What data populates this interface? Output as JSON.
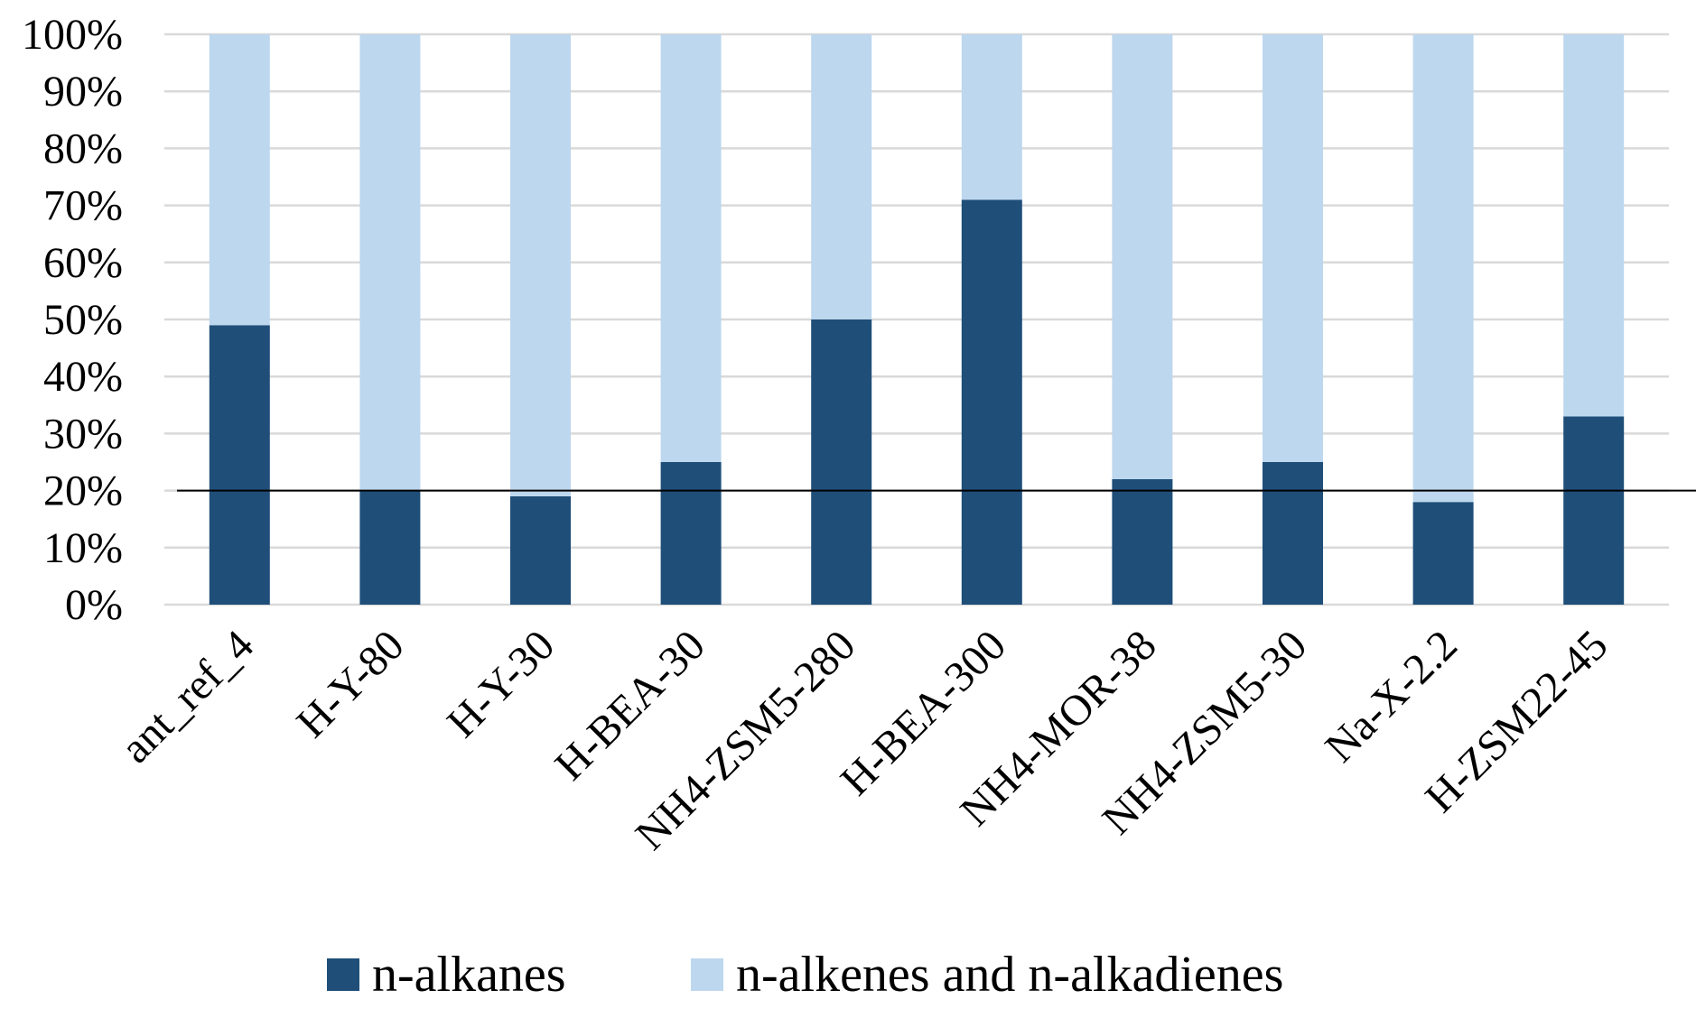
{
  "chart_data": {
    "type": "bar",
    "stacked": true,
    "percent_stacked": true,
    "title": "",
    "xlabel": "",
    "ylabel": "",
    "ylim": [
      0,
      100
    ],
    "y_ticks": [
      "0%",
      "10%",
      "20%",
      "30%",
      "40%",
      "50%",
      "60%",
      "70%",
      "80%",
      "90%",
      "100%"
    ],
    "grid": "horizontal",
    "legend_position": "bottom",
    "reference_line": {
      "y": 20
    },
    "categories": [
      "ant_ref_4",
      "H-Y-80",
      "H-Y-30",
      "H-BEA-30",
      "NH4-ZSM5-280",
      "H-BEA-300",
      "NH4-MOR-38",
      "NH4-ZSM5-30",
      "Na-X-2.2",
      "H-ZSM22-45"
    ],
    "series": [
      {
        "name": "n-alkanes",
        "color": "#1f4e79",
        "values": [
          49,
          20,
          19,
          25,
          50,
          71,
          22,
          25,
          18,
          33
        ]
      },
      {
        "name": "n-alkenes and n-alkadienes",
        "color": "#bdd7ee",
        "values": [
          51,
          80,
          81,
          75,
          50,
          29,
          78,
          75,
          82,
          67
        ]
      }
    ]
  }
}
